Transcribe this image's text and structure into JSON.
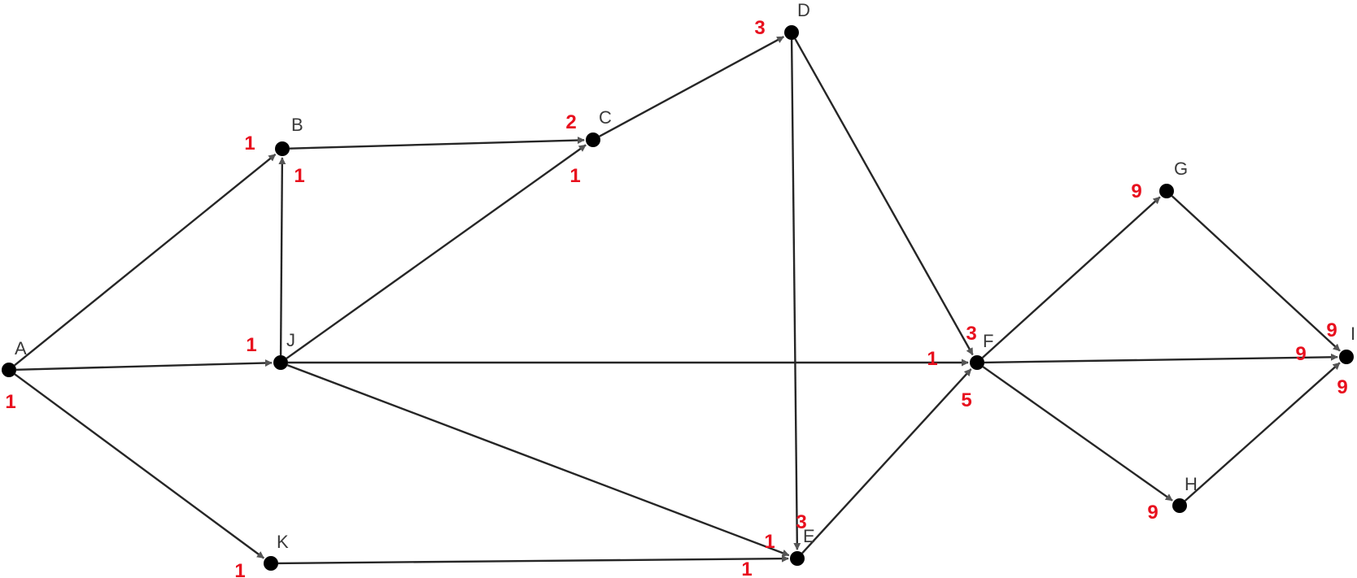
{
  "diagram": {
    "type": "directed-graph",
    "colors": {
      "edge": "#262626",
      "arrowhead": "#555555",
      "node": "#000000",
      "node_label": "#3a3a3a",
      "number_label": "#e8101e"
    },
    "nodes": [
      {
        "id": "A",
        "label": "A"
      },
      {
        "id": "B",
        "label": "B"
      },
      {
        "id": "C",
        "label": "C"
      },
      {
        "id": "D",
        "label": "D"
      },
      {
        "id": "E",
        "label": "E"
      },
      {
        "id": "F",
        "label": "F"
      },
      {
        "id": "G",
        "label": "G"
      },
      {
        "id": "H",
        "label": "H"
      },
      {
        "id": "I",
        "label": "I"
      },
      {
        "id": "J",
        "label": "J"
      },
      {
        "id": "K",
        "label": "K"
      }
    ],
    "edges": [
      {
        "from": "A",
        "to": "B"
      },
      {
        "from": "A",
        "to": "J"
      },
      {
        "from": "A",
        "to": "K"
      },
      {
        "from": "J",
        "to": "B"
      },
      {
        "from": "B",
        "to": "C"
      },
      {
        "from": "J",
        "to": "C"
      },
      {
        "from": "C",
        "to": "D"
      },
      {
        "from": "D",
        "to": "E"
      },
      {
        "from": "D",
        "to": "F"
      },
      {
        "from": "J",
        "to": "F"
      },
      {
        "from": "J",
        "to": "E"
      },
      {
        "from": "K",
        "to": "E"
      },
      {
        "from": "E",
        "to": "F"
      },
      {
        "from": "F",
        "to": "G"
      },
      {
        "from": "F",
        "to": "I"
      },
      {
        "from": "F",
        "to": "H"
      },
      {
        "from": "G",
        "to": "I"
      },
      {
        "from": "H",
        "to": "I"
      }
    ],
    "number_labels": [
      {
        "id": "n-a",
        "text": "1"
      },
      {
        "id": "n-b1",
        "text": "1"
      },
      {
        "id": "n-b2",
        "text": "1"
      },
      {
        "id": "n-c1",
        "text": "2"
      },
      {
        "id": "n-c2",
        "text": "1"
      },
      {
        "id": "n-d",
        "text": "3"
      },
      {
        "id": "n-j",
        "text": "1"
      },
      {
        "id": "n-k",
        "text": "1"
      },
      {
        "id": "n-e1",
        "text": "1"
      },
      {
        "id": "n-e2",
        "text": "3"
      },
      {
        "id": "n-e3",
        "text": "1"
      },
      {
        "id": "n-f1",
        "text": "3"
      },
      {
        "id": "n-f2",
        "text": "1"
      },
      {
        "id": "n-f3",
        "text": "5"
      },
      {
        "id": "n-g",
        "text": "9"
      },
      {
        "id": "n-h",
        "text": "9"
      },
      {
        "id": "n-i1",
        "text": "9"
      },
      {
        "id": "n-i2",
        "text": "9"
      },
      {
        "id": "n-i3",
        "text": "9"
      }
    ]
  }
}
